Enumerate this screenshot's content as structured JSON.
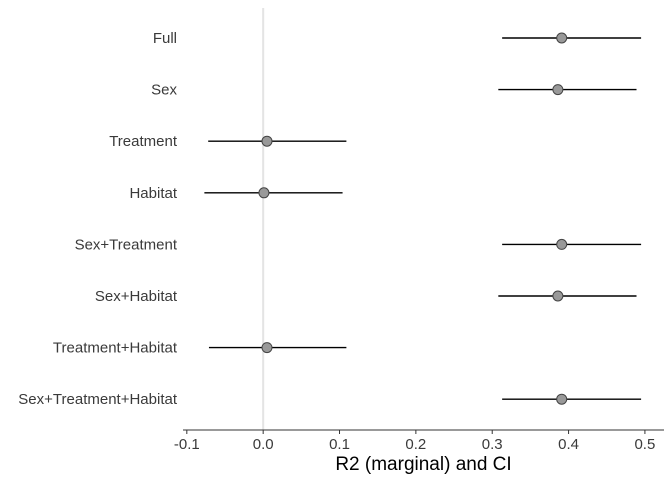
{
  "chart_data": {
    "type": "forest",
    "xlabel": "R2 (marginal) and CI",
    "xlim": [
      -0.105,
      0.525
    ],
    "xticks": [
      -0.1,
      0.0,
      0.1,
      0.2,
      0.3,
      0.4,
      0.5
    ],
    "xtick_labels": [
      "-0.1",
      "0.0",
      "0.1",
      "0.2",
      "0.3",
      "0.4",
      "0.5"
    ],
    "reference_line": 0.0,
    "grid": false,
    "rows": [
      {
        "label": "Full",
        "estimate": 0.391,
        "lower": 0.313,
        "upper": 0.495
      },
      {
        "label": "Sex",
        "estimate": 0.386,
        "lower": 0.308,
        "upper": 0.489
      },
      {
        "label": "Treatment",
        "estimate": 0.005,
        "lower": -0.072,
        "upper": 0.109
      },
      {
        "label": "Habitat",
        "estimate": 0.001,
        "lower": -0.077,
        "upper": 0.104
      },
      {
        "label": "Sex+Treatment",
        "estimate": 0.391,
        "lower": 0.313,
        "upper": 0.495
      },
      {
        "label": "Sex+Habitat",
        "estimate": 0.386,
        "lower": 0.308,
        "upper": 0.489
      },
      {
        "label": "Treatment+Habitat",
        "estimate": 0.005,
        "lower": -0.071,
        "upper": 0.109
      },
      {
        "label": "Sex+Treatment+Habitat",
        "estimate": 0.391,
        "lower": 0.313,
        "upper": 0.495
      }
    ],
    "colors": {
      "point_fill": "#999999",
      "point_stroke": "#444444",
      "interval": "#000000",
      "reference_line": "#e4e4e4",
      "axis": "#333333"
    }
  }
}
